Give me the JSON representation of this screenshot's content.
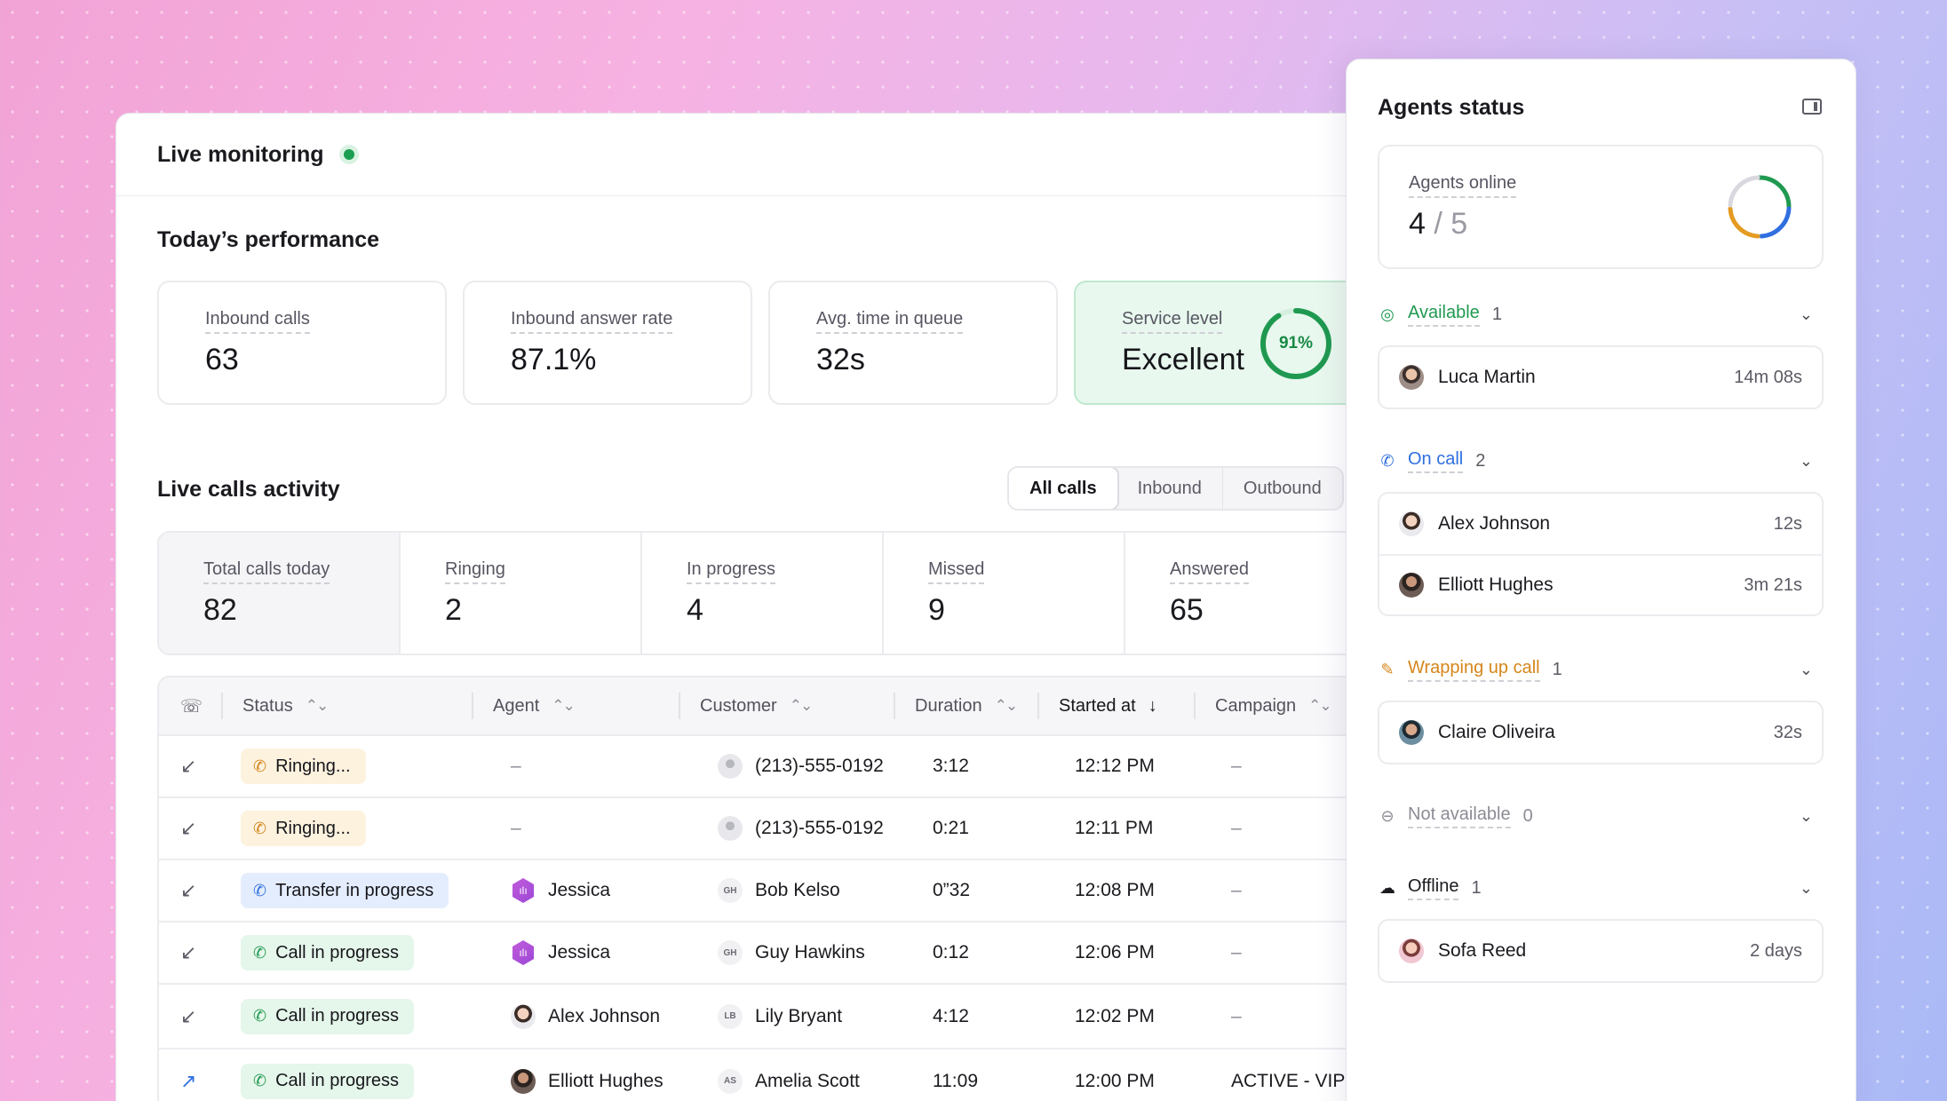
{
  "header": {
    "title": "Live monitoring"
  },
  "performance": {
    "title": "Today’s performance",
    "kpis": [
      {
        "label": "Inbound calls",
        "value": "63"
      },
      {
        "label": "Inbound answer rate",
        "value": "87.1%"
      },
      {
        "label": "Avg. time in queue",
        "value": "32s"
      },
      {
        "label": "Service level",
        "value": "Excellent",
        "ring_label": "91%",
        "ring_percent": 91
      }
    ]
  },
  "activity": {
    "title": "Live calls activity",
    "tabs": [
      "All calls",
      "Inbound",
      "Outbound"
    ],
    "stats": [
      {
        "label": "Total calls today",
        "value": "82"
      },
      {
        "label": "Ringing",
        "value": "2"
      },
      {
        "label": "In progress",
        "value": "4"
      },
      {
        "label": "Missed",
        "value": "9"
      },
      {
        "label": "Answered",
        "value": "65"
      }
    ]
  },
  "table": {
    "columns": [
      "Status",
      "Agent",
      "Customer",
      "Duration",
      "Started at",
      "Campaign"
    ],
    "rows": [
      {
        "direction": "inbound",
        "status": "Ringing...",
        "agent": "–",
        "customer": "(213)-555-0192",
        "duration": "3:12",
        "started": "12:12 PM",
        "campaign": "–"
      },
      {
        "direction": "inbound",
        "status": "Ringing...",
        "agent": "–",
        "customer": "(213)-555-0192",
        "duration": "0:21",
        "started": "12:11 PM",
        "campaign": "–"
      },
      {
        "direction": "inbound",
        "status": "Transfer in progress",
        "agent": "Jessica",
        "customer_initials": "GH",
        "customer": "Bob Kelso",
        "duration": "0”32",
        "started": "12:08 PM",
        "campaign": "–"
      },
      {
        "direction": "inbound",
        "status": "Call in progress",
        "agent": "Jessica",
        "customer_initials": "GH",
        "customer": "Guy Hawkins",
        "duration": "0:12",
        "started": "12:06 PM",
        "campaign": "–"
      },
      {
        "direction": "inbound",
        "status": "Call in progress",
        "agent": "Alex Johnson",
        "customer_initials": "LB",
        "customer": "Lily Bryant",
        "duration": "4:12",
        "started": "12:02 PM",
        "campaign": "–"
      },
      {
        "direction": "outbound",
        "status": "Call in progress",
        "agent": "Elliott Hughes",
        "customer_initials": "AS",
        "customer": "Amelia Scott",
        "duration": "11:09",
        "started": "12:00 PM",
        "campaign": "ACTIVE - VIP re"
      }
    ]
  },
  "agents": {
    "title": "Agents status",
    "online_label": "Agents online",
    "online_count": "4",
    "online_total": "5",
    "groups": [
      {
        "label": "Available",
        "count": "1",
        "items": [
          {
            "name": "Luca Martin",
            "time": "14m 08s"
          }
        ]
      },
      {
        "label": "On call",
        "count": "2",
        "items": [
          {
            "name": "Alex Johnson",
            "time": "12s"
          },
          {
            "name": "Elliott Hughes",
            "time": "3m 21s"
          }
        ]
      },
      {
        "label": "Wrapping up call",
        "count": "1",
        "items": [
          {
            "name": "Claire Oliveira",
            "time": "32s"
          }
        ]
      },
      {
        "label": "Not available",
        "count": "0",
        "items": []
      },
      {
        "label": "Offline",
        "count": "1",
        "items": [
          {
            "name": "Sofa Reed",
            "time": "2 days"
          }
        ]
      }
    ]
  },
  "colors": {
    "available": "#1f9950",
    "on_call": "#2f6fe0",
    "wrapping": "#d5861b",
    "not_available": "#8c8c96"
  }
}
